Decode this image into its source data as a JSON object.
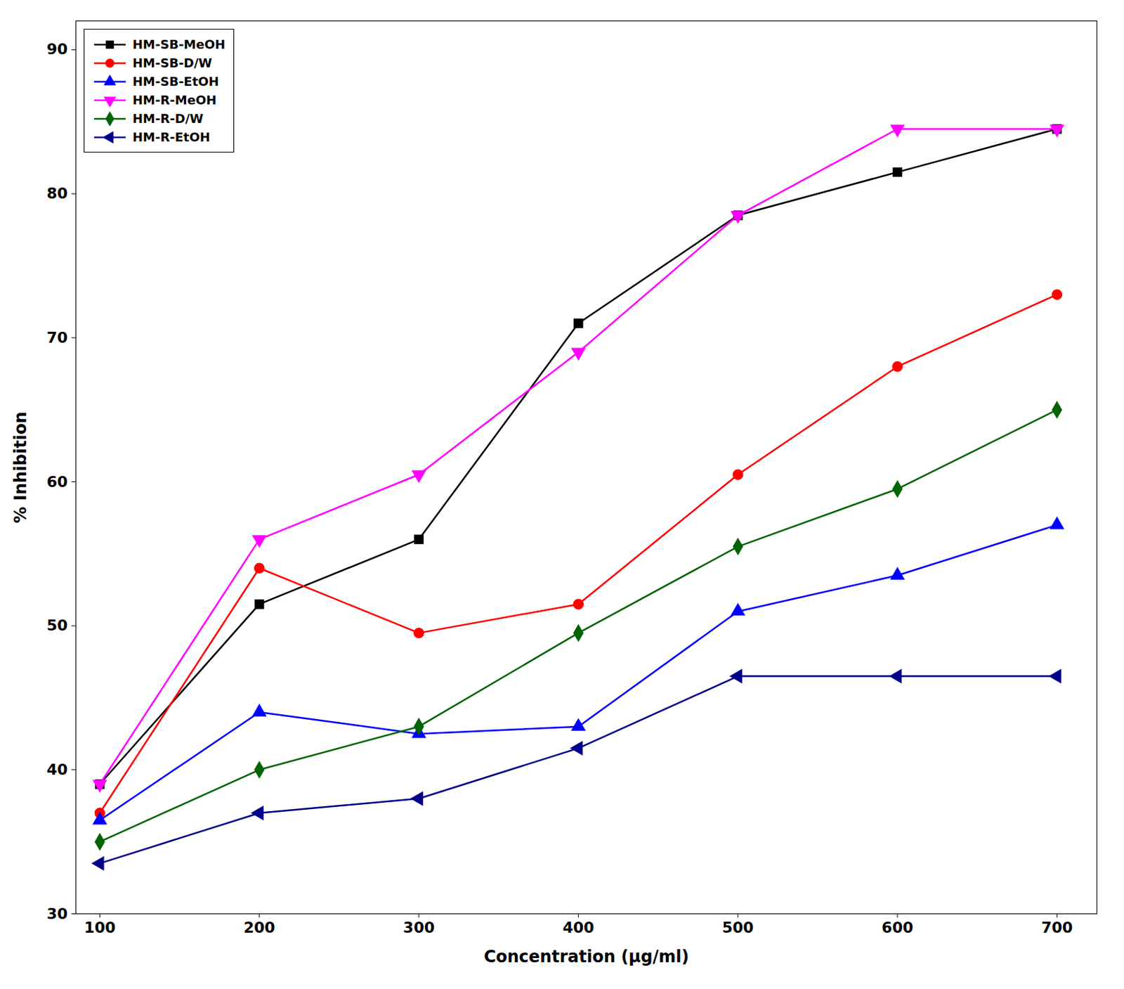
{
  "chart_data": {
    "type": "line",
    "xlabel": "Concentration (μg/ml)",
    "ylabel": "% Inhibition",
    "x": [
      100,
      200,
      300,
      400,
      500,
      600,
      700
    ],
    "series": [
      {
        "name": "HM-SB-MeOH",
        "color": "#000000",
        "marker": "square",
        "values": [
          39.0,
          51.5,
          56.0,
          71.0,
          78.5,
          81.5,
          84.5
        ]
      },
      {
        "name": "HM-SB-D/W",
        "color": "#ff0000",
        "marker": "circle",
        "values": [
          37.0,
          54.0,
          49.5,
          51.5,
          60.5,
          68.0,
          73.0
        ]
      },
      {
        "name": "HM-SB-EtOH",
        "color": "#0000ff",
        "marker": "triangle-up",
        "values": [
          36.5,
          44.0,
          42.5,
          43.0,
          51.0,
          53.5,
          57.0
        ]
      },
      {
        "name": "HM-R-MeOH",
        "color": "#ff00ff",
        "marker": "triangle-down",
        "values": [
          39.0,
          56.0,
          60.5,
          69.0,
          78.5,
          84.5,
          84.5
        ]
      },
      {
        "name": "HM-R-D/W",
        "color": "#006400",
        "marker": "diamond",
        "values": [
          35.0,
          40.0,
          43.0,
          49.5,
          55.5,
          59.5,
          65.0
        ]
      },
      {
        "name": "HM-R-EtOH",
        "color": "#00008b",
        "marker": "triangle-left",
        "values": [
          33.5,
          37.0,
          38.0,
          41.5,
          46.5,
          46.5,
          46.5
        ]
      }
    ],
    "xlim": [
      85,
      725
    ],
    "ylim": [
      30,
      92
    ],
    "xticks": [
      100,
      200,
      300,
      400,
      500,
      600,
      700
    ],
    "yticks": [
      30,
      40,
      50,
      60,
      70,
      80,
      90
    ],
    "legend": "upper left",
    "grid": false
  }
}
